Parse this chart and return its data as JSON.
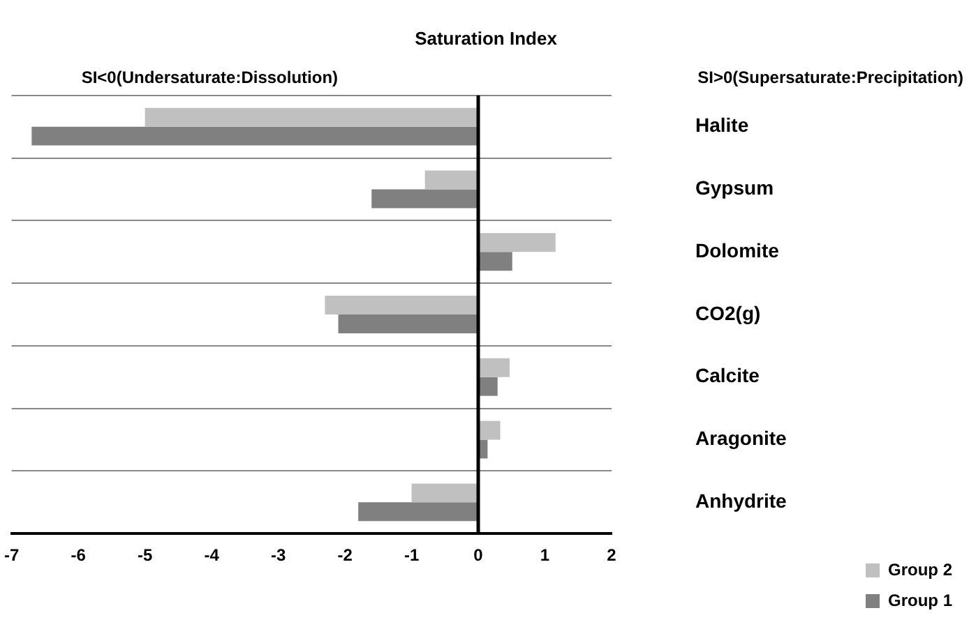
{
  "chart_data": {
    "type": "bar",
    "orientation": "horizontal",
    "title": "Saturation Index",
    "annotations": [
      "SI<0(Undersaturate:Dissolution)",
      "SI>0(Supersaturate:Precipitation)"
    ],
    "categories": [
      "Halite",
      "Gypsum",
      "Dolomite",
      "CO2(g)",
      "Calcite",
      "Aragonite",
      "Anhydrite"
    ],
    "series": [
      {
        "name": "Group 2",
        "color": "#c0c0c0",
        "values": [
          -5.0,
          -0.8,
          1.16,
          -2.3,
          0.47,
          0.33,
          -1.0
        ]
      },
      {
        "name": "Group 1",
        "color": "#808080",
        "values": [
          -6.7,
          -1.6,
          0.51,
          -2.1,
          0.29,
          0.14,
          -1.8
        ]
      }
    ],
    "xlim": [
      -7,
      2
    ],
    "xticks": [
      -7,
      -6,
      -5,
      -4,
      -3,
      -2,
      -1,
      0,
      1,
      2
    ],
    "grid": "y",
    "legend": "bottom right"
  }
}
